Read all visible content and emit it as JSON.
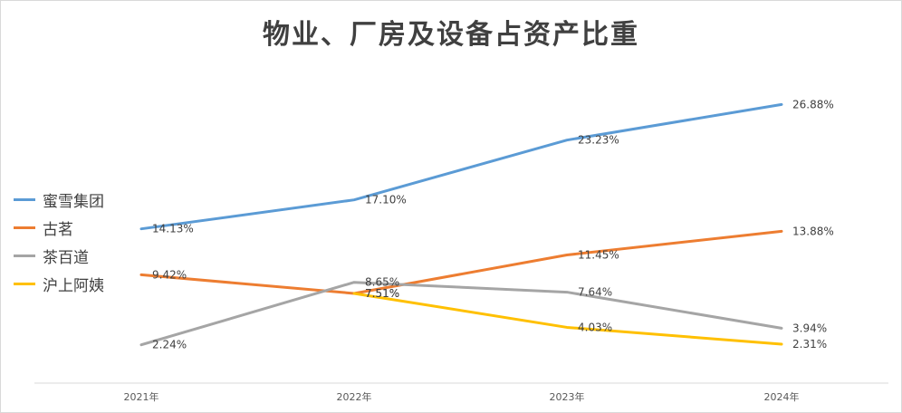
{
  "chart_data": {
    "type": "line",
    "title": "物业、厂房及设备占资产比重",
    "categories": [
      "2021年",
      "2022年",
      "2023年",
      "2024年"
    ],
    "series": [
      {
        "name": "蜜雪集团",
        "color": "#5b9bd5",
        "values": [
          14.13,
          17.1,
          23.23,
          26.88
        ],
        "labels": [
          "14.13%",
          "17.10%",
          "23.23%",
          "26.88%"
        ]
      },
      {
        "name": "古茗",
        "color": "#ed7d31",
        "values": [
          9.42,
          7.51,
          11.45,
          13.88
        ],
        "labels": [
          "9.42%",
          "7.51%",
          "11.45%",
          "13.88%"
        ]
      },
      {
        "name": "茶百道",
        "color": "#a5a5a5",
        "values": [
          2.24,
          8.65,
          7.64,
          3.94
        ],
        "labels": [
          "2.24%",
          "8.65%",
          "7.64%",
          "3.94%"
        ]
      },
      {
        "name": "沪上阿姨",
        "color": "#ffc000",
        "values": [
          null,
          7.51,
          4.03,
          2.31
        ],
        "labels": [
          null,
          "7.51%",
          "4.03%",
          "2.31%"
        ]
      }
    ],
    "ylim": [
      -1.5,
      31
    ],
    "grid": false,
    "legend_position": "left"
  }
}
